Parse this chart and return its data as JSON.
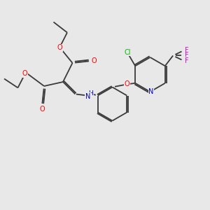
{
  "background_color": "#e8e8e8",
  "bond_color": "#3a3a3a",
  "bond_lw": 1.3,
  "atom_colors": {
    "O": "#ff0000",
    "N": "#0000cc",
    "Cl": "#00bb00",
    "F": "#ee00ee",
    "C": "#3a3a3a"
  },
  "figsize": [
    3.0,
    3.0
  ],
  "dpi": 100,
  "xlim": [
    0,
    10
  ],
  "ylim": [
    0,
    10
  ]
}
